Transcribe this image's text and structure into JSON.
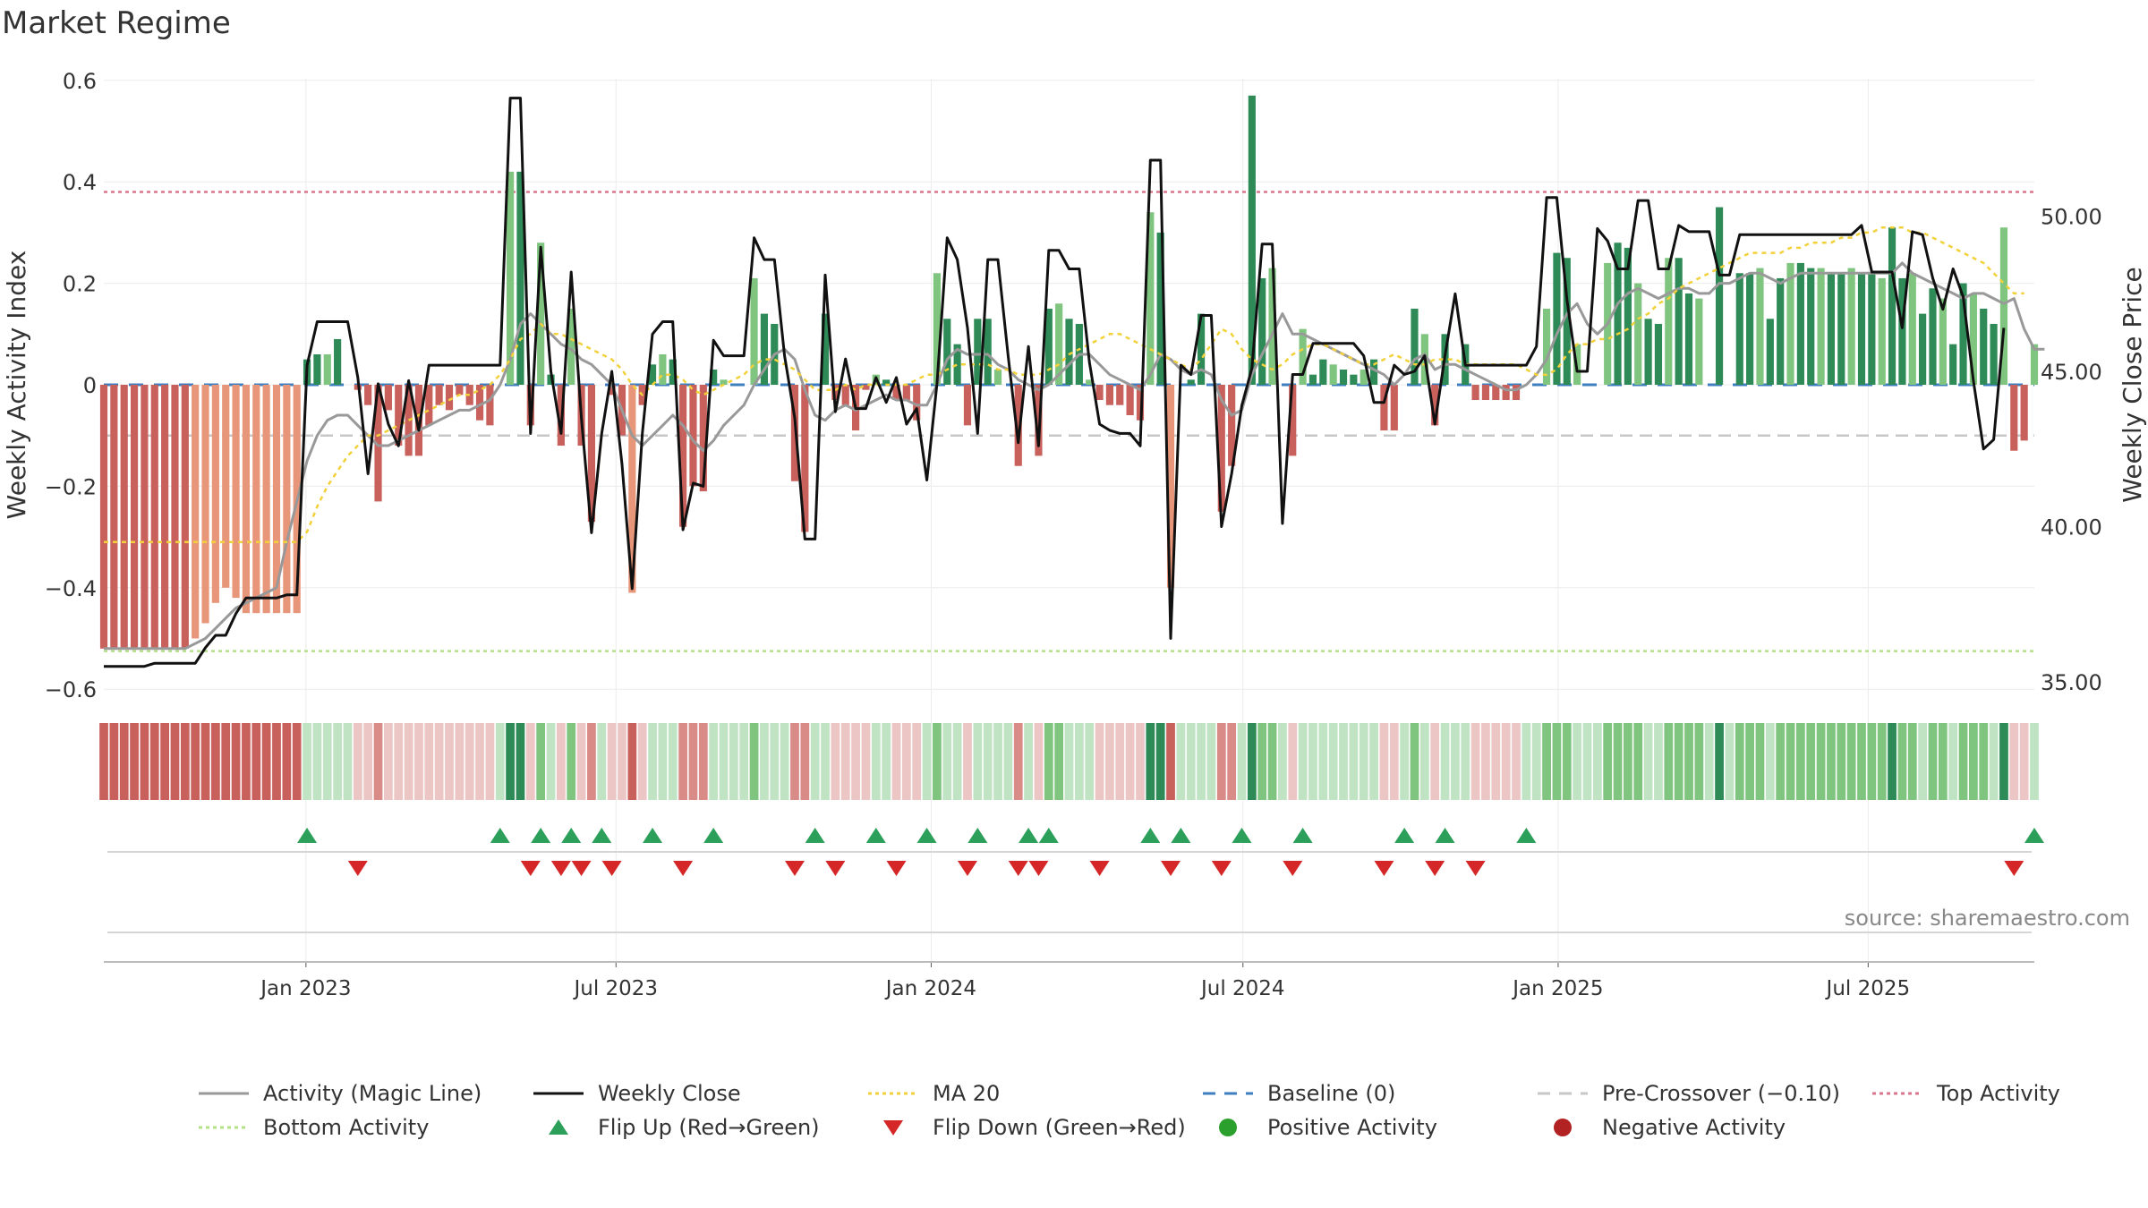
{
  "title": "Market Regime",
  "source": "source: sharemaestro.com",
  "colors": {
    "bar_pos_strong": "#2e8b57",
    "bar_pos_weak": "#7fc47f",
    "bar_neg_strong": "#c8605c",
    "bar_neg_weak": "#e8967a",
    "magic_line": "#999999",
    "close_line": "#111111",
    "ma20": "#f2d13a",
    "baseline": "#3f7fbf",
    "pre_crossover": "#c7c7c7",
    "top_activity": "#d9778f",
    "bottom_activity": "#b5e08a",
    "flip_up": "#2ca05a",
    "flip_down": "#d62728",
    "positive": "#2ca02c",
    "negative": "#b22222"
  },
  "chart_data": {
    "type": "bar",
    "title": "Market Regime",
    "ylabel_left": "Weekly Activity Index",
    "ylabel_right": "Weekly Close Price",
    "yticks_left": [
      "0.6",
      "0.4",
      "0.2",
      "0",
      "−0.2",
      "−0.4",
      "−0.6"
    ],
    "yticks_right": [
      "50.00",
      "45.00",
      "40.00",
      "35.00"
    ],
    "ylim_left": [
      -0.6,
      0.6
    ],
    "ylim_right": [
      35,
      55
    ],
    "x_ticks": [
      "Jan 2023",
      "Jul 2023",
      "Jan 2024",
      "Jul 2024",
      "Jan 2025",
      "Jul 2025"
    ],
    "x_start": "2022-09-05",
    "x_end": "2025-10-06",
    "x_tick_dates": [
      "2023-01-01",
      "2023-07-01",
      "2024-01-01",
      "2024-07-01",
      "2025-01-01",
      "2025-07-01"
    ],
    "top_activity": 0.38,
    "bottom_activity": -0.525,
    "pre_crossover": -0.1,
    "baseline": 0,
    "activity": [
      -0.52,
      -0.52,
      -0.52,
      -0.52,
      -0.52,
      -0.52,
      -0.52,
      -0.52,
      -0.52,
      -0.5,
      -0.47,
      -0.43,
      -0.4,
      -0.42,
      -0.45,
      -0.45,
      -0.45,
      -0.45,
      -0.45,
      -0.45,
      0.05,
      0.06,
      0.06,
      0.09,
      0.0,
      -0.01,
      -0.04,
      -0.23,
      -0.05,
      -0.12,
      -0.14,
      -0.14,
      -0.08,
      -0.04,
      -0.05,
      -0.02,
      -0.04,
      -0.07,
      -0.08,
      0.0,
      0.42,
      0.42,
      -0.08,
      0.28,
      0.02,
      -0.12,
      0.15,
      -0.12,
      -0.27,
      0.0,
      -0.02,
      -0.1,
      -0.41,
      -0.04,
      0.04,
      0.06,
      0.05,
      -0.28,
      -0.2,
      -0.21,
      0.03,
      0.01,
      0.0,
      0.0,
      0.21,
      0.14,
      0.12,
      0.0,
      -0.19,
      -0.29,
      0.0,
      0.14,
      -0.03,
      -0.04,
      -0.09,
      -0.01,
      0.02,
      0.01,
      -0.03,
      -0.03,
      -0.07,
      0.0,
      0.22,
      0.13,
      0.08,
      -0.08,
      0.13,
      0.13,
      0.03,
      0.0,
      -0.16,
      0.0,
      -0.14,
      0.15,
      0.16,
      0.13,
      0.12,
      0.01,
      -0.03,
      -0.04,
      -0.04,
      -0.06,
      -0.07,
      0.34,
      0.3,
      -0.4,
      0.0,
      0.01,
      0.14,
      0.0,
      -0.25,
      -0.16,
      0.0,
      0.57,
      0.21,
      0.23,
      0.0,
      -0.14,
      0.11,
      0.02,
      0.05,
      0.04,
      0.03,
      0.02,
      0.03,
      0.05,
      -0.09,
      -0.09,
      0.0,
      0.15,
      0.1,
      -0.08,
      0.1,
      0.0,
      0.08,
      -0.03,
      -0.03,
      -0.03,
      -0.03,
      -0.03,
      0.0,
      0.0,
      0.15,
      0.26,
      0.25,
      0.08,
      0.0,
      0.0,
      0.24,
      0.28,
      0.27,
      0.2,
      0.13,
      0.12,
      0.25,
      0.25,
      0.18,
      0.17,
      0.0,
      0.35,
      0.0,
      0.22,
      0.22,
      0.23,
      0.13,
      0.21,
      0.24,
      0.24,
      0.23,
      0.23,
      0.22,
      0.22,
      0.23,
      0.22,
      0.22,
      0.21,
      0.31,
      0.21,
      0.22,
      0.14,
      0.19,
      0.17,
      0.08,
      0.2,
      0.18,
      0.15,
      0.12,
      0.31,
      -0.13,
      -0.11,
      0.08
    ],
    "magic_line": [
      -0.52,
      -0.52,
      -0.52,
      -0.52,
      -0.52,
      -0.52,
      -0.52,
      -0.52,
      -0.52,
      -0.51,
      -0.5,
      -0.48,
      -0.46,
      -0.44,
      -0.43,
      -0.42,
      -0.41,
      -0.4,
      -0.31,
      -0.23,
      -0.15,
      -0.1,
      -0.07,
      -0.06,
      -0.06,
      -0.08,
      -0.1,
      -0.12,
      -0.12,
      -0.11,
      -0.1,
      -0.09,
      -0.08,
      -0.07,
      -0.06,
      -0.05,
      -0.05,
      -0.04,
      -0.03,
      0.0,
      0.05,
      0.12,
      0.14,
      0.12,
      0.1,
      0.08,
      0.07,
      0.05,
      0.04,
      0.02,
      0.0,
      -0.05,
      -0.1,
      -0.12,
      -0.1,
      -0.08,
      -0.06,
      -0.08,
      -0.11,
      -0.13,
      -0.11,
      -0.08,
      -0.06,
      -0.04,
      0.0,
      0.03,
      0.06,
      0.07,
      0.05,
      -0.01,
      -0.06,
      -0.07,
      -0.05,
      -0.04,
      -0.05,
      -0.04,
      -0.03,
      -0.02,
      -0.03,
      -0.03,
      -0.04,
      -0.04,
      0.0,
      0.05,
      0.07,
      0.06,
      0.06,
      0.06,
      0.04,
      0.03,
      0.01,
      0.0,
      -0.01,
      0.0,
      0.02,
      0.04,
      0.06,
      0.06,
      0.04,
      0.02,
      0.01,
      0.0,
      -0.01,
      0.02,
      0.06,
      0.05,
      0.03,
      0.02,
      0.03,
      0.02,
      -0.03,
      -0.06,
      -0.05,
      0.02,
      0.06,
      0.1,
      0.14,
      0.1,
      0.1,
      0.09,
      0.08,
      0.07,
      0.06,
      0.05,
      0.04,
      0.03,
      0.02,
      0.0,
      0.02,
      0.05,
      0.06,
      0.03,
      0.04,
      0.04,
      0.03,
      0.02,
      0.01,
      0.0,
      -0.01,
      -0.01,
      0.0,
      0.02,
      0.05,
      0.1,
      0.14,
      0.16,
      0.12,
      0.1,
      0.12,
      0.16,
      0.18,
      0.19,
      0.18,
      0.17,
      0.18,
      0.19,
      0.19,
      0.18,
      0.18,
      0.2,
      0.2,
      0.21,
      0.22,
      0.22,
      0.21,
      0.2,
      0.21,
      0.22,
      0.22,
      0.22,
      0.22,
      0.22,
      0.22,
      0.22,
      0.22,
      0.22,
      0.22,
      0.24,
      0.22,
      0.21,
      0.2,
      0.19,
      0.18,
      0.17,
      0.18,
      0.18,
      0.17,
      0.16,
      0.17,
      0.11,
      0.07,
      0.07
    ],
    "ma20": [
      -0.31,
      -0.31,
      -0.31,
      -0.31,
      -0.31,
      -0.31,
      -0.31,
      -0.31,
      -0.31,
      -0.31,
      -0.31,
      -0.31,
      -0.31,
      -0.31,
      -0.31,
      -0.31,
      -0.31,
      -0.31,
      -0.31,
      -0.31,
      -0.29,
      -0.24,
      -0.2,
      -0.17,
      -0.14,
      -0.12,
      -0.1,
      -0.1,
      -0.09,
      -0.08,
      -0.07,
      -0.06,
      -0.05,
      -0.04,
      -0.03,
      -0.02,
      -0.02,
      -0.01,
      0.0,
      0.02,
      0.05,
      0.09,
      0.1,
      0.12,
      0.1,
      0.1,
      0.09,
      0.08,
      0.07,
      0.06,
      0.05,
      0.03,
      0.0,
      -0.02,
      0.0,
      0.02,
      0.02,
      0.01,
      -0.01,
      -0.02,
      -0.01,
      0.0,
      0.01,
      0.02,
      0.04,
      0.05,
      0.05,
      0.04,
      0.03,
      0.01,
      -0.01,
      -0.01,
      -0.01,
      0.0,
      -0.01,
      0.0,
      0.0,
      0.0,
      0.0,
      0.0,
      0.01,
      0.02,
      0.02,
      0.03,
      0.04,
      0.04,
      0.04,
      0.04,
      0.03,
      0.03,
      0.02,
      0.02,
      0.02,
      0.03,
      0.04,
      0.06,
      0.07,
      0.08,
      0.09,
      0.1,
      0.1,
      0.09,
      0.08,
      0.07,
      0.06,
      0.05,
      0.04,
      0.03,
      0.05,
      0.08,
      0.11,
      0.1,
      0.07,
      0.05,
      0.04,
      0.03,
      0.04,
      0.06,
      0.07,
      0.08,
      0.08,
      0.07,
      0.06,
      0.05,
      0.04,
      0.04,
      0.05,
      0.06,
      0.05,
      0.04,
      0.04,
      0.05,
      0.05,
      0.05,
      0.04,
      0.04,
      0.04,
      0.04,
      0.04,
      0.04,
      0.03,
      0.02,
      0.02,
      0.03,
      0.06,
      0.08,
      0.08,
      0.09,
      0.09,
      0.1,
      0.11,
      0.13,
      0.14,
      0.16,
      0.17,
      0.19,
      0.2,
      0.21,
      0.22,
      0.23,
      0.24,
      0.25,
      0.26,
      0.26,
      0.26,
      0.26,
      0.27,
      0.27,
      0.28,
      0.28,
      0.28,
      0.29,
      0.29,
      0.3,
      0.3,
      0.31,
      0.31,
      0.31,
      0.3,
      0.3,
      0.29,
      0.28,
      0.27,
      0.26,
      0.25,
      0.24,
      0.22,
      0.2,
      0.18,
      0.18
    ],
    "close": [
      35.5,
      35.5,
      35.5,
      35.5,
      35.5,
      35.6,
      35.6,
      35.6,
      35.6,
      35.6,
      36.1,
      36.5,
      36.5,
      37.2,
      37.7,
      37.7,
      37.7,
      37.7,
      37.8,
      37.8,
      45.2,
      46.6,
      46.6,
      46.6,
      46.6,
      44.8,
      41.7,
      44.6,
      43.3,
      42.6,
      44.7,
      43.1,
      45.2,
      45.2,
      45.2,
      45.2,
      45.2,
      45.2,
      45.2,
      45.2,
      53.8,
      53.8,
      43.0,
      49.0,
      45.0,
      43.0,
      48.2,
      43.5,
      39.8,
      43.0,
      45.0,
      42.0,
      38.0,
      43.0,
      46.2,
      46.6,
      46.6,
      39.9,
      41.4,
      41.3,
      46.0,
      45.5,
      45.5,
      45.5,
      49.3,
      48.6,
      48.6,
      45.5,
      43.5,
      39.6,
      39.6,
      48.1,
      43.7,
      45.4,
      43.8,
      43.8,
      44.8,
      44.0,
      44.8,
      43.3,
      43.8,
      41.5,
      44.6,
      49.3,
      48.6,
      46.4,
      43.0,
      48.6,
      48.6,
      45.5,
      42.7,
      45.8,
      42.6,
      48.9,
      48.9,
      48.3,
      48.3,
      45.3,
      43.3,
      43.1,
      43.0,
      43.0,
      42.6,
      51.8,
      51.8,
      36.4,
      45.2,
      44.9,
      46.8,
      46.8,
      40.0,
      41.7,
      43.9,
      45.1,
      49.1,
      49.1,
      40.1,
      44.9,
      44.9,
      45.9,
      45.9,
      45.9,
      45.9,
      45.9,
      45.5,
      44.0,
      44.0,
      45.2,
      44.9,
      45.0,
      45.5,
      43.3,
      45.5,
      47.5,
      45.2,
      45.2,
      45.2,
      45.2,
      45.2,
      45.2,
      45.2,
      45.8,
      50.6,
      50.6,
      47.3,
      45.0,
      45.0,
      49.6,
      49.2,
      48.3,
      48.3,
      50.5,
      50.5,
      48.3,
      48.3,
      49.7,
      49.5,
      49.5,
      49.5,
      48.1,
      48.1,
      49.4,
      49.4,
      49.4,
      49.4,
      49.4,
      49.4,
      49.4,
      49.4,
      49.4,
      49.4,
      49.4,
      49.4,
      49.7,
      48.2,
      48.2,
      48.2,
      46.4,
      49.5,
      49.4,
      48.0,
      47.0,
      48.3,
      47.4,
      44.7,
      42.5,
      42.8,
      46.4
    ]
  },
  "legend": [
    {
      "label": "Activity (Magic Line)",
      "kind": "line-solid",
      "color": "#999999"
    },
    {
      "label": "Weekly Close",
      "kind": "line-solid",
      "color": "#111111"
    },
    {
      "label": "MA 20",
      "kind": "line-dotted",
      "color": "#f2d13a"
    },
    {
      "label": "Baseline (0)",
      "kind": "line-dashed",
      "color": "#3f7fbf"
    },
    {
      "label": "Pre-Crossover (−0.10)",
      "kind": "line-dashed",
      "color": "#c7c7c7"
    },
    {
      "label": "Top Activity",
      "kind": "line-dotted",
      "color": "#d9778f"
    },
    {
      "label": "Bottom Activity",
      "kind": "line-dotted",
      "color": "#b5e08a"
    },
    {
      "label": "Flip Up (Red→Green)",
      "kind": "tri-up",
      "color": "#2ca05a"
    },
    {
      "label": "Flip Down (Green→Red)",
      "kind": "tri-down",
      "color": "#d62728"
    },
    {
      "label": "Positive Activity",
      "kind": "dot",
      "color": "#2ca02c"
    },
    {
      "label": "Negative Activity",
      "kind": "dot",
      "color": "#b22222"
    }
  ]
}
